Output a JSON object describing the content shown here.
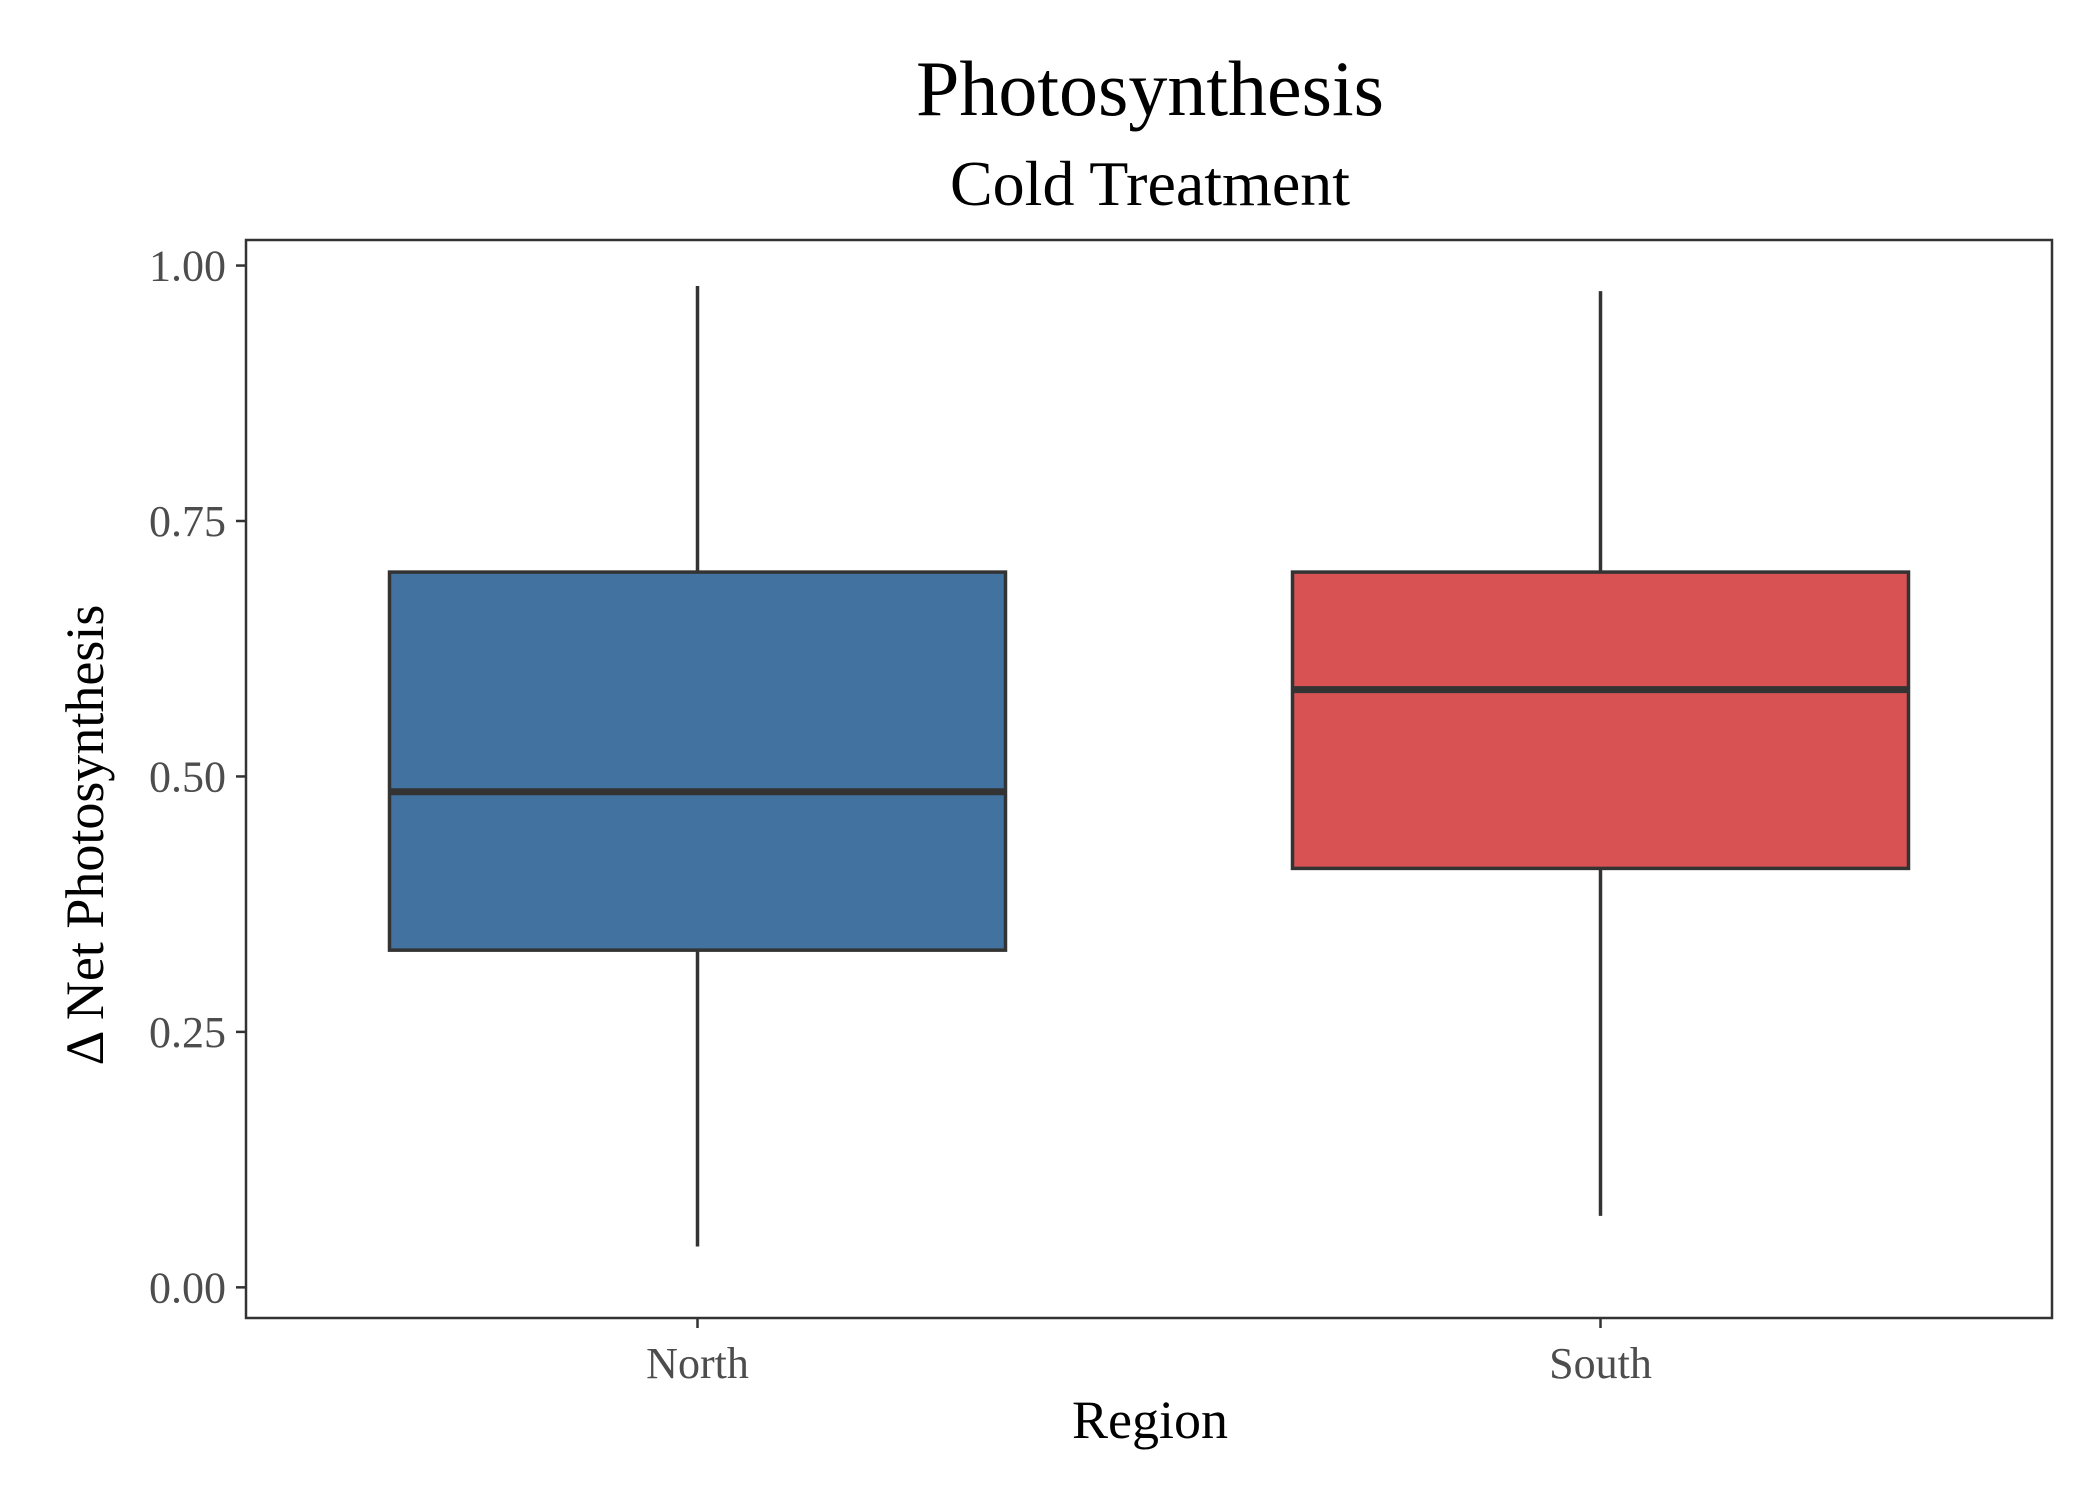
{
  "chart_data": {
    "type": "box",
    "title": "Photosynthesis",
    "subtitle": "Cold Treatment",
    "xlabel": "Region",
    "ylabel": "Δ Net Photosynthesis",
    "ylim": [
      -0.03,
      1.025
    ],
    "yticks": [
      "0.00",
      "0.25",
      "0.50",
      "0.75",
      "1.00"
    ],
    "ytick_values": [
      0,
      0.25,
      0.5,
      0.75,
      1.0
    ],
    "grid": false,
    "legend": "none",
    "categories": [
      "North",
      "South"
    ],
    "boxes": [
      {
        "category": "North",
        "min": 0.04,
        "q1": 0.33,
        "median": 0.485,
        "q3": 0.7,
        "max": 0.98,
        "color": "#4272a0"
      },
      {
        "category": "South",
        "min": 0.07,
        "q1": 0.41,
        "median": 0.585,
        "q3": 0.7,
        "max": 0.975,
        "color": "#d85254"
      }
    ]
  }
}
